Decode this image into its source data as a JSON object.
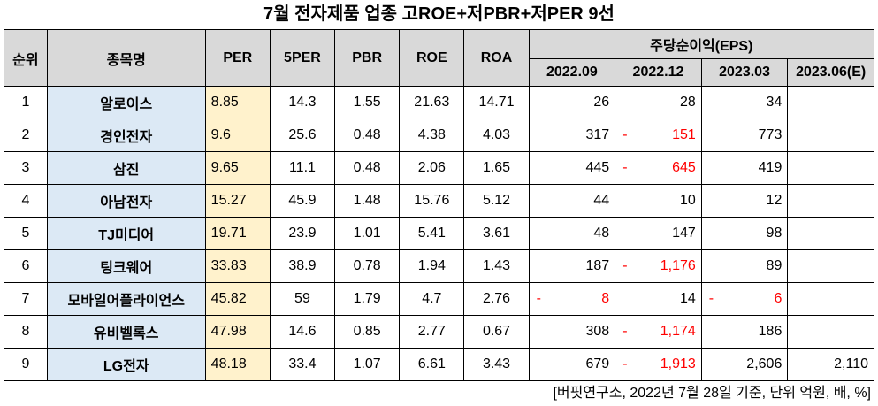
{
  "title": "7월  전자제품 업종 고ROE+저PBR+저PER 9선",
  "headers": {
    "rank": "순위",
    "name": "종목명",
    "per": "PER",
    "per5": "5PER",
    "pbr": "PBR",
    "roe": "ROE",
    "roa": "ROA",
    "eps_group": "주당순이익(EPS)",
    "periods": [
      "2022.09",
      "2022.12",
      "2023.03",
      "2023.06(E)"
    ]
  },
  "rows": [
    {
      "rank": "1",
      "name": "알로이스",
      "per": "8.85",
      "per5": "14.3",
      "pbr": "1.55",
      "roe": "21.63",
      "roa": "14.71",
      "eps": [
        {
          "v": "26",
          "neg": false
        },
        {
          "v": "28",
          "neg": false
        },
        {
          "v": "34",
          "neg": false
        },
        {
          "v": "",
          "neg": false
        }
      ]
    },
    {
      "rank": "2",
      "name": "경인전자",
      "per": "9.6",
      "per5": "25.6",
      "pbr": "0.48",
      "roe": "4.38",
      "roa": "4.03",
      "eps": [
        {
          "v": "317",
          "neg": false
        },
        {
          "v": "151",
          "neg": true
        },
        {
          "v": "773",
          "neg": false
        },
        {
          "v": "",
          "neg": false
        }
      ]
    },
    {
      "rank": "3",
      "name": "삼진",
      "per": "9.65",
      "per5": "11.1",
      "pbr": "0.48",
      "roe": "2.06",
      "roa": "1.65",
      "eps": [
        {
          "v": "445",
          "neg": false
        },
        {
          "v": "645",
          "neg": true
        },
        {
          "v": "419",
          "neg": false
        },
        {
          "v": "",
          "neg": false
        }
      ]
    },
    {
      "rank": "4",
      "name": "아남전자",
      "per": "15.27",
      "per5": "45.9",
      "pbr": "1.48",
      "roe": "15.76",
      "roa": "5.12",
      "eps": [
        {
          "v": "44",
          "neg": false
        },
        {
          "v": "10",
          "neg": false
        },
        {
          "v": "12",
          "neg": false
        },
        {
          "v": "",
          "neg": false
        }
      ]
    },
    {
      "rank": "5",
      "name": "TJ미디어",
      "per": "19.71",
      "per5": "23.9",
      "pbr": "1.01",
      "roe": "5.41",
      "roa": "3.61",
      "eps": [
        {
          "v": "48",
          "neg": false
        },
        {
          "v": "147",
          "neg": false
        },
        {
          "v": "98",
          "neg": false
        },
        {
          "v": "",
          "neg": false
        }
      ]
    },
    {
      "rank": "6",
      "name": "팅크웨어",
      "per": "33.83",
      "per5": "38.9",
      "pbr": "0.78",
      "roe": "1.94",
      "roa": "1.43",
      "eps": [
        {
          "v": "187",
          "neg": false
        },
        {
          "v": "1,176",
          "neg": true
        },
        {
          "v": "89",
          "neg": false
        },
        {
          "v": "",
          "neg": false
        }
      ]
    },
    {
      "rank": "7",
      "name": "모바일어플라이언스",
      "per": "45.82",
      "per5": "59",
      "pbr": "1.79",
      "roe": "4.7",
      "roa": "2.76",
      "eps": [
        {
          "v": "8",
          "neg": true
        },
        {
          "v": "14",
          "neg": false
        },
        {
          "v": "6",
          "neg": true
        },
        {
          "v": "",
          "neg": false
        }
      ]
    },
    {
      "rank": "8",
      "name": "유비벨록스",
      "per": "47.98",
      "per5": "14.6",
      "pbr": "0.85",
      "roe": "2.77",
      "roa": "0.67",
      "eps": [
        {
          "v": "308",
          "neg": false
        },
        {
          "v": "1,174",
          "neg": true
        },
        {
          "v": "186",
          "neg": false
        },
        {
          "v": "",
          "neg": false
        }
      ]
    },
    {
      "rank": "9",
      "name": "LG전자",
      "per": "48.18",
      "per5": "33.4",
      "pbr": "1.07",
      "roe": "6.61",
      "roa": "3.43",
      "eps": [
        {
          "v": "679",
          "neg": false
        },
        {
          "v": "1,913",
          "neg": true
        },
        {
          "v": "2,606",
          "neg": false
        },
        {
          "v": "2,110",
          "neg": false
        }
      ]
    }
  ],
  "negative_prefix": "-",
  "source": "[버핏연구소, 2022년 7월 28일 기준, 단위 억원, 배, %]",
  "colors": {
    "header_bg": "#d9d9d9",
    "name_bg": "#dce9f5",
    "per_bg": "#fff2cc",
    "negative": "#ff0000"
  }
}
